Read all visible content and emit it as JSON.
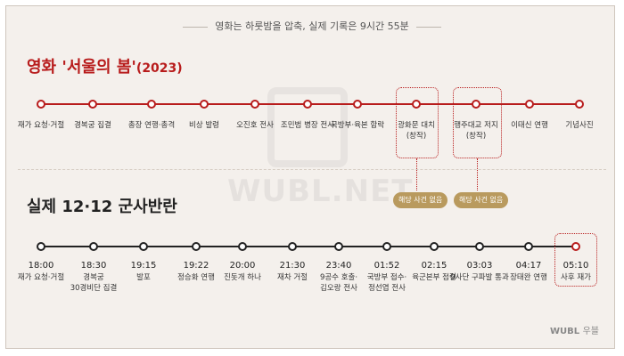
{
  "header": {
    "subtitle": "영화는 하룻밤을 압축, 실제 기록은 9시간 55분"
  },
  "movie": {
    "title": "영화 '서울의 봄'",
    "year": "(2023)",
    "events": [
      "재가 요청·거절",
      "경복궁 집결",
      "총장 연행·총격",
      "비상 발령",
      "오진호 전사",
      "조민범 병장 전사",
      "국방부·육본 함락",
      "광화문 대치",
      "(창작)",
      "행주대교 저지",
      "(창작)",
      "이태신 연행",
      "기념사진"
    ]
  },
  "reality": {
    "title": "실제 12·12 군사반란",
    "events": [
      {
        "time": "18:00",
        "label": "재가 요청·거절"
      },
      {
        "time": "18:30",
        "label": "경복궁",
        "label2": "30경비단 집결"
      },
      {
        "time": "19:15",
        "label": "발포"
      },
      {
        "time": "19:22",
        "label": "정승화 연행"
      },
      {
        "time": "20:00",
        "label": "진돗개 하나"
      },
      {
        "time": "21:30",
        "label": "재차 거절"
      },
      {
        "time": "23:40",
        "label": "9공수 호출·",
        "label2": "김오랑 전사"
      },
      {
        "time": "01:52",
        "label": "국방부 접수·",
        "label2": "정선엽 전사"
      },
      {
        "time": "02:15",
        "label": "육군본부 점령"
      },
      {
        "time": "03:03",
        "label": "9사단 구파발 통과"
      },
      {
        "time": "04:17",
        "label": "장태완 연행"
      },
      {
        "time": "05:10",
        "label": "사후 재가"
      }
    ]
  },
  "callouts": [
    "해당 사건 없음",
    "해당 사건 없음"
  ],
  "watermark": "WUBL.NET",
  "footer": {
    "brand": "WUBL",
    "brand_ko": "우블"
  },
  "colors": {
    "accent": "#b81c1c",
    "gold": "#b99a5e",
    "background": "#f4f0ec"
  }
}
